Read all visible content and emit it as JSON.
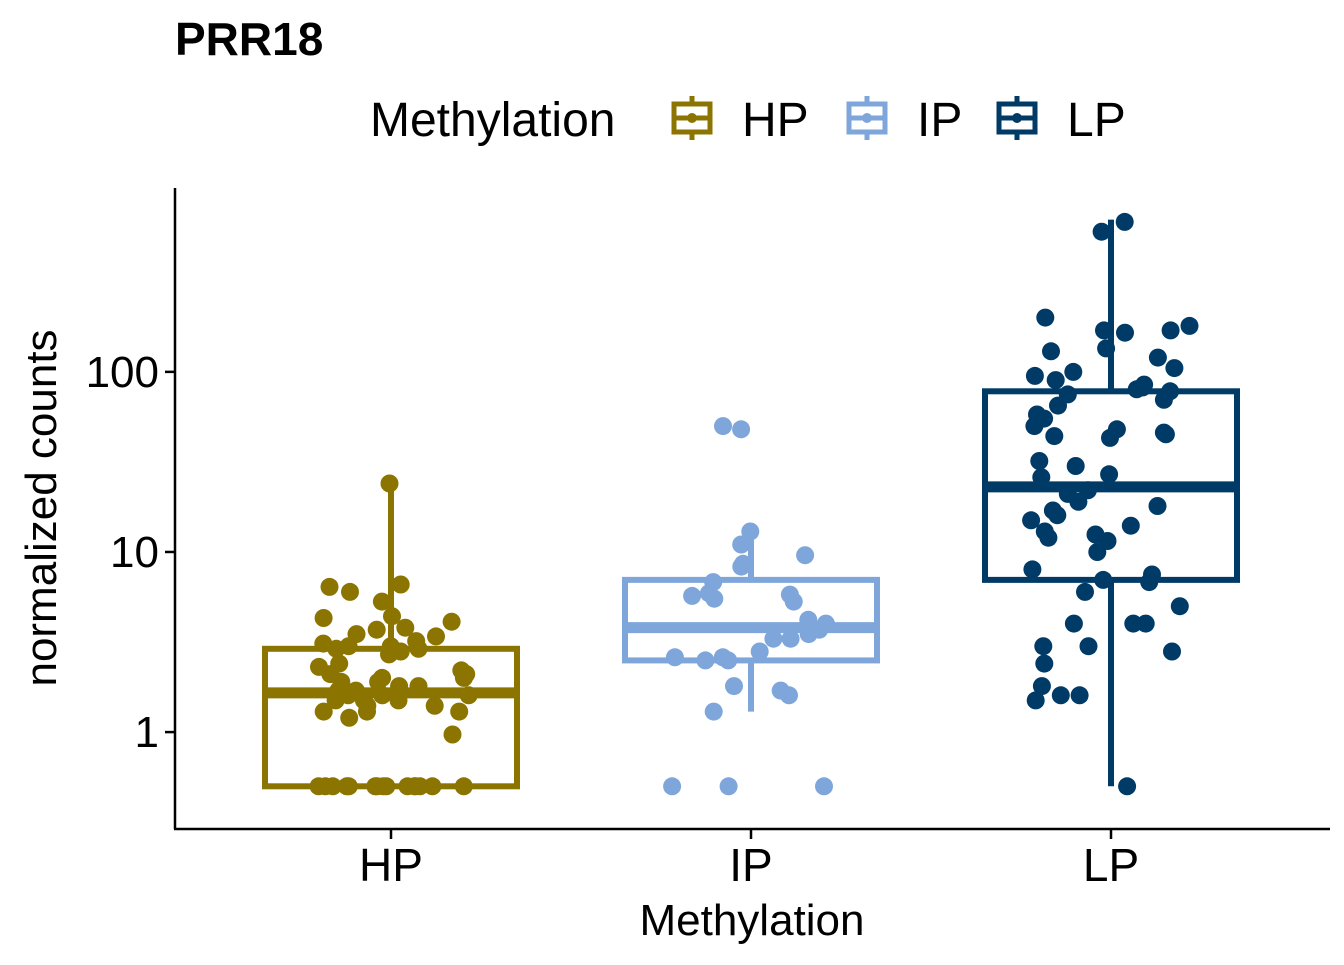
{
  "chart_data": {
    "type": "boxplot",
    "title": "PRR18",
    "xlabel": "Methylation",
    "ylabel": "normalized counts",
    "y_scale": "log10",
    "ylim": [
      0.36,
      900
    ],
    "y_ticks": [
      {
        "value": 1,
        "label": "1"
      },
      {
        "value": 10,
        "label": "10"
      },
      {
        "value": 100,
        "label": "100"
      }
    ],
    "categories": [
      "HP",
      "IP",
      "LP"
    ],
    "legend": {
      "title": "Methylation",
      "position": "top",
      "entries": [
        {
          "label": "HP",
          "color": "#8B7500"
        },
        {
          "label": "IP",
          "color": "#7EA6DA"
        },
        {
          "label": "LP",
          "color": "#003A66"
        }
      ]
    },
    "grid": false,
    "series": [
      {
        "category": "HP",
        "color": "#8B7500",
        "box": {
          "min": 0.5,
          "q1": 0.5,
          "median": 1.65,
          "q3": 2.9,
          "max": 24
        },
        "points": [
          24,
          6.6,
          6.4,
          6.0,
          5.3,
          4.4,
          4.3,
          4.1,
          3.8,
          3.7,
          3.5,
          3.4,
          3.2,
          3.1,
          3.0,
          3.0,
          2.9,
          2.9,
          2.8,
          2.7,
          2.4,
          2.3,
          2.2,
          2.1,
          2.1,
          2.0,
          2.0,
          1.9,
          1.9,
          1.8,
          1.8,
          1.7,
          1.7,
          1.6,
          1.6,
          1.6,
          1.5,
          1.5,
          1.5,
          1.4,
          1.4,
          1.3,
          1.3,
          1.3,
          1.2,
          0.97,
          0.5,
          0.5,
          0.5,
          0.5,
          0.5,
          0.5,
          0.5,
          0.5,
          0.5,
          0.5,
          0.5,
          0.5,
          0.5,
          0.5,
          0.5
        ]
      },
      {
        "category": "IP",
        "color": "#7EA6DA",
        "box": {
          "min": 1.3,
          "q1": 2.5,
          "median": 3.8,
          "q3": 7.0,
          "max": 13
        },
        "points": [
          50,
          48,
          13,
          11,
          9.6,
          8.6,
          8.3,
          6.8,
          5.9,
          5.8,
          5.7,
          5.5,
          5.3,
          4.2,
          4.0,
          3.7,
          3.5,
          3.3,
          3.3,
          2.8,
          2.6,
          2.6,
          2.5,
          2.5,
          1.8,
          1.7,
          1.6,
          1.3,
          0.5,
          0.5,
          0.5
        ]
      },
      {
        "category": "LP",
        "color": "#003A66",
        "box": {
          "min": 0.5,
          "q1": 7.0,
          "median": 23,
          "q3": 78,
          "max": 700
        },
        "points": [
          680,
          600,
          200,
          180,
          170,
          170,
          165,
          135,
          130,
          120,
          105,
          100,
          95,
          90,
          85,
          82,
          80,
          78,
          75,
          70,
          65,
          58,
          55,
          50,
          48,
          46,
          45,
          44,
          43,
          32,
          30,
          27,
          26,
          22,
          21,
          19,
          18,
          17,
          16,
          15,
          14,
          13,
          12.5,
          12,
          11.5,
          10,
          8.0,
          7.5,
          7.0,
          6.8,
          6.0,
          5.0,
          4.0,
          4.0,
          4.0,
          3.0,
          3.0,
          2.8,
          2.4,
          1.8,
          1.6,
          1.6,
          1.5,
          0.5
        ]
      }
    ]
  }
}
